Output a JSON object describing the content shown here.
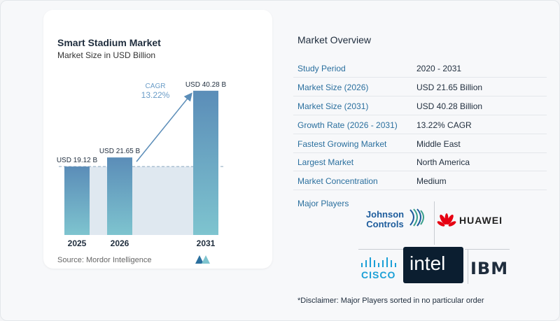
{
  "chart_data": {
    "type": "bar",
    "title": "Smart Stadium Market",
    "subtitle": "Market Size in USD Billion",
    "categories": [
      "2025",
      "2026",
      "2031"
    ],
    "values": [
      19.12,
      21.65,
      40.28
    ],
    "value_labels": [
      "USD 19.12 B",
      "USD 21.65 B",
      "USD 40.28 B"
    ],
    "cagr_label": "CAGR",
    "cagr_value": "13.22%",
    "colors": {
      "bar_top": "#5b8db8",
      "bar_bottom": "#7ec4cf",
      "band": "#dfe8f0",
      "arrow": "#5b8db8",
      "cagr_text": "#6a9cc7"
    }
  },
  "source": "Source:  Mordor Intelligence",
  "overview": {
    "title": "Market Overview",
    "rows": [
      {
        "label": "Study Period",
        "value": "2020 - 2031"
      },
      {
        "label": "Market Size (2026)",
        "value": "USD 21.65 Billion"
      },
      {
        "label": "Market Size (2031)",
        "value": "USD 40.28 Billion"
      },
      {
        "label": "Growth Rate (2026 - 2031)",
        "value": "13.22% CAGR"
      },
      {
        "label": "Fastest Growing Market",
        "value": "Middle East"
      },
      {
        "label": "Largest Market",
        "value": "North America"
      },
      {
        "label": "Market Concentration",
        "value": "Medium"
      }
    ],
    "players_label": "Major Players",
    "players": {
      "johnson_controls": "Johnson Controls",
      "johnson_line1": "Johnson",
      "johnson_line2": "Controls",
      "huawei": "HUAWEI",
      "cisco": "CISCO",
      "intel": "intel",
      "ibm": "IBM"
    }
  },
  "disclaimer": "*Disclaimer: Major Players sorted in no particular order"
}
